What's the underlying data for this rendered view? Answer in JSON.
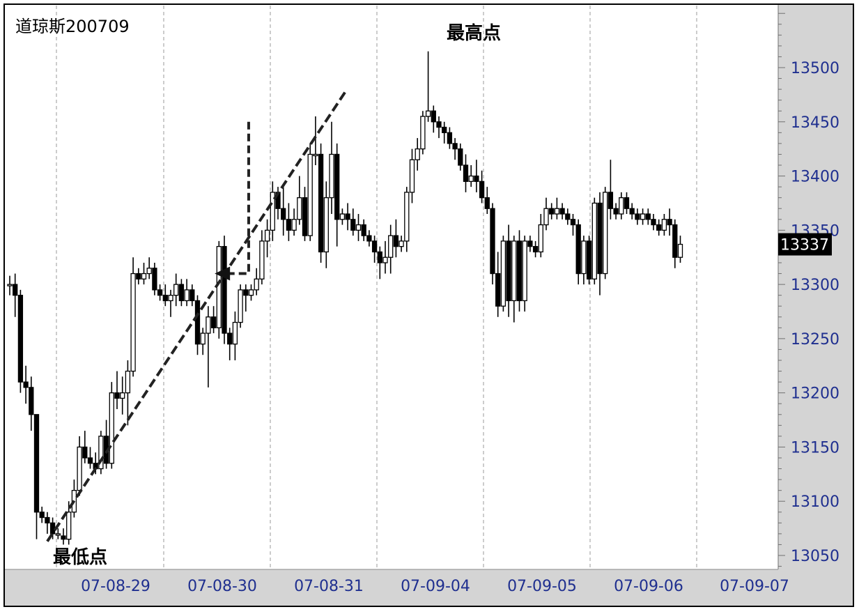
{
  "chart_data": {
    "type": "candlestick",
    "title": "道琼斯200709",
    "annotations": {
      "high_label": "最高点",
      "low_label": "最低点"
    },
    "price_badge": "13337",
    "ylim": [
      13030,
      13570
    ],
    "yticks": [
      13050,
      13100,
      13150,
      13200,
      13250,
      13300,
      13350,
      13400,
      13450,
      13500
    ],
    "x_tick_labels": [
      "07-08-29",
      "07-08-30",
      "07-08-31",
      "07-09-04",
      "07-09-05",
      "07-09-06",
      "07-09-07"
    ],
    "grid": "vertical-dashed",
    "trendline": {
      "from": [
        7,
        13063
      ],
      "to": [
        60,
        13478
      ]
    },
    "retracement_marker": {
      "from": [
        43.5,
        13450
      ],
      "to": [
        39.5,
        13310
      ]
    },
    "candles": [
      [
        13300,
        13308,
        13290,
        13300
      ],
      [
        13300,
        13310,
        13270,
        13290
      ],
      [
        13290,
        13295,
        13200,
        13210
      ],
      [
        13210,
        13225,
        13190,
        13205
      ],
      [
        13205,
        13215,
        13165,
        13180
      ],
      [
        13180,
        13180,
        13065,
        13090
      ],
      [
        13090,
        13095,
        13080,
        13085
      ],
      [
        13085,
        13090,
        13070,
        13080
      ],
      [
        13080,
        13085,
        13065,
        13070
      ],
      [
        13070,
        13075,
        13065,
        13070
      ],
      [
        13068,
        13075,
        13060,
        13065
      ],
      [
        13065,
        13100,
        13060,
        13090
      ],
      [
        13090,
        13120,
        13085,
        13110
      ],
      [
        13110,
        13160,
        13105,
        13150
      ],
      [
        13150,
        13165,
        13135,
        13140
      ],
      [
        13140,
        13150,
        13130,
        13135
      ],
      [
        13135,
        13145,
        13125,
        13130
      ],
      [
        13130,
        13165,
        13125,
        13160
      ],
      [
        13160,
        13175,
        13130,
        13135
      ],
      [
        13135,
        13210,
        13130,
        13200
      ],
      [
        13200,
        13220,
        13185,
        13195
      ],
      [
        13195,
        13215,
        13180,
        13200
      ],
      [
        13200,
        13230,
        13170,
        13220
      ],
      [
        13220,
        13325,
        13215,
        13310
      ],
      [
        13310,
        13315,
        13300,
        13305
      ],
      [
        13305,
        13320,
        13300,
        13310
      ],
      [
        13310,
        13325,
        13305,
        13315
      ],
      [
        13315,
        13320,
        13290,
        13295
      ],
      [
        13295,
        13300,
        13285,
        13290
      ],
      [
        13290,
        13300,
        13280,
        13285
      ],
      [
        13285,
        13295,
        13270,
        13290
      ],
      [
        13290,
        13310,
        13280,
        13300
      ],
      [
        13300,
        13305,
        13280,
        13285
      ],
      [
        13285,
        13305,
        13280,
        13295
      ],
      [
        13295,
        13300,
        13280,
        13285
      ],
      [
        13285,
        13290,
        13235,
        13245
      ],
      [
        13245,
        13260,
        13235,
        13255
      ],
      [
        13255,
        13280,
        13205,
        13270
      ],
      [
        13270,
        13280,
        13255,
        13260
      ],
      [
        13260,
        13340,
        13250,
        13335
      ],
      [
        13335,
        13345,
        13245,
        13255
      ],
      [
        13255,
        13260,
        13230,
        13245
      ],
      [
        13245,
        13275,
        13230,
        13265
      ],
      [
        13265,
        13300,
        13260,
        13295
      ],
      [
        13295,
        13300,
        13275,
        13290
      ],
      [
        13290,
        13300,
        13285,
        13295
      ],
      [
        13295,
        13315,
        13290,
        13305
      ],
      [
        13305,
        13350,
        13300,
        13340
      ],
      [
        13340,
        13360,
        13325,
        13350
      ],
      [
        13350,
        13395,
        13340,
        13385
      ],
      [
        13385,
        13390,
        13360,
        13370
      ],
      [
        13370,
        13390,
        13345,
        13360
      ],
      [
        13360,
        13375,
        13340,
        13350
      ],
      [
        13350,
        13370,
        13345,
        13360
      ],
      [
        13360,
        13400,
        13355,
        13380
      ],
      [
        13380,
        13390,
        13340,
        13345
      ],
      [
        13345,
        13430,
        13340,
        13420
      ],
      [
        13420,
        13455,
        13410,
        13420
      ],
      [
        13420,
        13430,
        13320,
        13330
      ],
      [
        13330,
        13395,
        13315,
        13380
      ],
      [
        13380,
        13450,
        13365,
        13420
      ],
      [
        13420,
        13430,
        13335,
        13360
      ],
      [
        13360,
        13370,
        13355,
        13365
      ],
      [
        13365,
        13375,
        13350,
        13360
      ],
      [
        13360,
        13370,
        13345,
        13350
      ],
      [
        13350,
        13365,
        13340,
        13355
      ],
      [
        13355,
        13360,
        13340,
        13345
      ],
      [
        13345,
        13350,
        13335,
        13340
      ],
      [
        13340,
        13345,
        13320,
        13330
      ],
      [
        13330,
        13335,
        13305,
        13320
      ],
      [
        13320,
        13340,
        13310,
        13325
      ],
      [
        13325,
        13355,
        13310,
        13345
      ],
      [
        13345,
        13360,
        13325,
        13335
      ],
      [
        13335,
        13345,
        13330,
        13340
      ],
      [
        13340,
        13390,
        13330,
        13385
      ],
      [
        13385,
        13425,
        13375,
        13415
      ],
      [
        13415,
        13435,
        13405,
        13425
      ],
      [
        13425,
        13460,
        13420,
        13455
      ],
      [
        13455,
        13515,
        13450,
        13460
      ],
      [
        13460,
        13465,
        13440,
        13450
      ],
      [
        13450,
        13455,
        13435,
        13445
      ],
      [
        13445,
        13450,
        13430,
        13440
      ],
      [
        13440,
        13445,
        13425,
        13430
      ],
      [
        13430,
        13435,
        13415,
        13425
      ],
      [
        13425,
        13430,
        13405,
        13410
      ],
      [
        13410,
        13420,
        13385,
        13395
      ],
      [
        13395,
        13410,
        13390,
        13400
      ],
      [
        13400,
        13415,
        13385,
        13395
      ],
      [
        13395,
        13405,
        13375,
        13380
      ],
      [
        13380,
        13390,
        13365,
        13370
      ],
      [
        13370,
        13375,
        13300,
        13310
      ],
      [
        13310,
        13330,
        13270,
        13280
      ],
      [
        13280,
        13345,
        13275,
        13340
      ],
      [
        13340,
        13355,
        13270,
        13285
      ],
      [
        13285,
        13345,
        13265,
        13340
      ],
      [
        13340,
        13350,
        13275,
        13285
      ],
      [
        13285,
        13345,
        13275,
        13340
      ],
      [
        13340,
        13345,
        13330,
        13335
      ],
      [
        13335,
        13340,
        13325,
        13330
      ],
      [
        13330,
        13365,
        13325,
        13355
      ],
      [
        13355,
        13380,
        13350,
        13370
      ],
      [
        13370,
        13375,
        13360,
        13365
      ],
      [
        13365,
        13380,
        13360,
        13370
      ],
      [
        13370,
        13375,
        13360,
        13365
      ],
      [
        13365,
        13370,
        13355,
        13360
      ],
      [
        13360,
        13365,
        13345,
        13355
      ],
      [
        13355,
        13360,
        13300,
        13310
      ],
      [
        13310,
        13345,
        13300,
        13340
      ],
      [
        13340,
        13345,
        13300,
        13305
      ],
      [
        13305,
        13380,
        13300,
        13375
      ],
      [
        13375,
        13385,
        13290,
        13310
      ],
      [
        13310,
        13390,
        13305,
        13385
      ],
      [
        13385,
        13415,
        13360,
        13370
      ],
      [
        13370,
        13375,
        13360,
        13365
      ],
      [
        13365,
        13385,
        13360,
        13380
      ],
      [
        13380,
        13385,
        13365,
        13370
      ],
      [
        13370,
        13375,
        13360,
        13365
      ],
      [
        13365,
        13370,
        13355,
        13360
      ],
      [
        13360,
        13370,
        13355,
        13365
      ],
      [
        13365,
        13370,
        13355,
        13360
      ],
      [
        13360,
        13365,
        13350,
        13355
      ],
      [
        13355,
        13360,
        13345,
        13350
      ],
      [
        13350,
        13365,
        13345,
        13360
      ],
      [
        13360,
        13370,
        13345,
        13355
      ],
      [
        13355,
        13360,
        13315,
        13325
      ],
      [
        13325,
        13345,
        13320,
        13337
      ]
    ]
  }
}
